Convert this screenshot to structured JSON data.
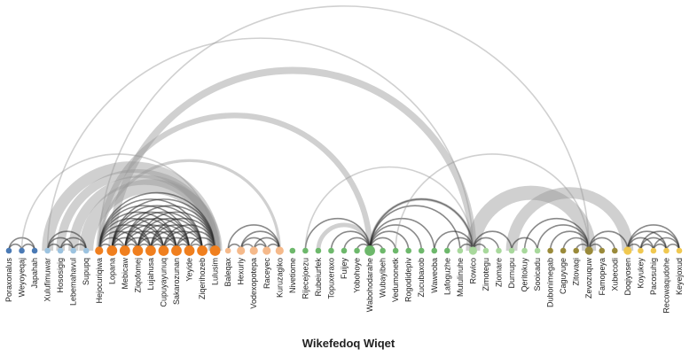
{
  "chart_data": {
    "type": "arc-diagram",
    "title": "Wikefedoq Wiqet",
    "nodes": [
      {
        "name": "Poraxonalus",
        "group": 0,
        "size": 1
      },
      {
        "name": "Weyoyeqaj",
        "group": 0,
        "size": 1
      },
      {
        "name": "Japahah",
        "group": 0,
        "size": 1
      },
      {
        "name": "Xulufimuwar",
        "group": 1,
        "size": 1
      },
      {
        "name": "Hososigig",
        "group": 1,
        "size": 1
      },
      {
        "name": "Lebemahavul",
        "group": 1,
        "size": 1
      },
      {
        "name": "Supupq",
        "group": 1,
        "size": 1
      },
      {
        "name": "Hejocuriqiwa",
        "group": 2,
        "size": 2
      },
      {
        "name": "Lopana",
        "group": 2,
        "size": 3
      },
      {
        "name": "Mebicaw",
        "group": 2,
        "size": 3
      },
      {
        "name": "Ziqofomej",
        "group": 2,
        "size": 3
      },
      {
        "name": "Lujahusa",
        "group": 2,
        "size": 3
      },
      {
        "name": "Cupuyayunuq",
        "group": 2,
        "size": 3
      },
      {
        "name": "Sakarozunan",
        "group": 2,
        "size": 3
      },
      {
        "name": "Yeyide",
        "group": 2,
        "size": 3
      },
      {
        "name": "Ziqerihozeb",
        "group": 2,
        "size": 3
      },
      {
        "name": "Lulusim",
        "group": 2,
        "size": 3
      },
      {
        "name": "Baleqax",
        "group": 3,
        "size": 1
      },
      {
        "name": "Hexuriy",
        "group": 3,
        "size": 2
      },
      {
        "name": "Vodexopotepa",
        "group": 3,
        "size": 2
      },
      {
        "name": "Raceyec",
        "group": 3,
        "size": 2
      },
      {
        "name": "Kuruzagiko",
        "group": 3,
        "size": 2
      },
      {
        "name": "Nivetiome",
        "group": 4,
        "size": 1
      },
      {
        "name": "Rijecejoezu",
        "group": 4,
        "size": 1
      },
      {
        "name": "Rubeiurfek",
        "group": 4,
        "size": 1
      },
      {
        "name": "Topuxeraxo",
        "group": 4,
        "size": 1
      },
      {
        "name": "Fuijey",
        "group": 4,
        "size": 1
      },
      {
        "name": "Yobohoye",
        "group": 4,
        "size": 1
      },
      {
        "name": "Wabohodarahe",
        "group": 4,
        "size": 3
      },
      {
        "name": "Wubayibeh",
        "group": 4,
        "size": 1
      },
      {
        "name": "Vedumonetk",
        "group": 4,
        "size": 1
      },
      {
        "name": "Rogodidepiv",
        "group": 4,
        "size": 1
      },
      {
        "name": "Zucubaxob",
        "group": 4,
        "size": 1
      },
      {
        "name": "Waweoba",
        "group": 4,
        "size": 1
      },
      {
        "name": "Lafoguzhe",
        "group": 4,
        "size": 1
      },
      {
        "name": "Mutulinuhe",
        "group": 5,
        "size": 1
      },
      {
        "name": "Rowico",
        "group": 5,
        "size": 2
      },
      {
        "name": "Zimotegu",
        "group": 5,
        "size": 1
      },
      {
        "name": "Ziomare",
        "group": 5,
        "size": 1
      },
      {
        "name": "Durnupu",
        "group": 5,
        "size": 1
      },
      {
        "name": "Qeritokuy",
        "group": 5,
        "size": 1
      },
      {
        "name": "Sooicadu",
        "group": 5,
        "size": 1
      },
      {
        "name": "Dubonimegab",
        "group": 6,
        "size": 1
      },
      {
        "name": "Caguyuge",
        "group": 6,
        "size": 1
      },
      {
        "name": "Zitovaqi",
        "group": 6,
        "size": 1
      },
      {
        "name": "Zevozuquw",
        "group": 6,
        "size": 2
      },
      {
        "name": "Famopeya",
        "group": 6,
        "size": 1
      },
      {
        "name": "Xubecodi",
        "group": 6,
        "size": 1
      },
      {
        "name": "Doqiyosen",
        "group": 7,
        "size": 2
      },
      {
        "name": "Koyukey",
        "group": 7,
        "size": 1
      },
      {
        "name": "Pacosuhig",
        "group": 7,
        "size": 1
      },
      {
        "name": "Recowaqudohe",
        "group": 7,
        "size": 1
      },
      {
        "name": "Keyejoxud",
        "group": 7,
        "size": 1
      }
    ],
    "links": [
      [
        0,
        1,
        1
      ],
      [
        1,
        2,
        1
      ],
      [
        0,
        2,
        1
      ],
      [
        3,
        4,
        1
      ],
      [
        4,
        5,
        1
      ],
      [
        5,
        6,
        1
      ],
      [
        3,
        5,
        1
      ],
      [
        4,
        6,
        1
      ],
      [
        3,
        6,
        1
      ],
      [
        7,
        8,
        1
      ],
      [
        7,
        9,
        1
      ],
      [
        7,
        10,
        1
      ],
      [
        7,
        11,
        1
      ],
      [
        7,
        12,
        1
      ],
      [
        7,
        13,
        1
      ],
      [
        7,
        14,
        1
      ],
      [
        7,
        15,
        1
      ],
      [
        7,
        16,
        1
      ],
      [
        8,
        9,
        1
      ],
      [
        8,
        10,
        1
      ],
      [
        8,
        11,
        1
      ],
      [
        8,
        12,
        1
      ],
      [
        8,
        13,
        1
      ],
      [
        8,
        14,
        1
      ],
      [
        8,
        15,
        1
      ],
      [
        8,
        16,
        1
      ],
      [
        9,
        10,
        1
      ],
      [
        9,
        11,
        1
      ],
      [
        9,
        12,
        1
      ],
      [
        9,
        13,
        1
      ],
      [
        9,
        14,
        1
      ],
      [
        9,
        15,
        1
      ],
      [
        9,
        16,
        1
      ],
      [
        10,
        11,
        1
      ],
      [
        10,
        12,
        1
      ],
      [
        10,
        13,
        1
      ],
      [
        10,
        14,
        1
      ],
      [
        10,
        15,
        1
      ],
      [
        10,
        16,
        1
      ],
      [
        11,
        12,
        1
      ],
      [
        11,
        13,
        1
      ],
      [
        11,
        14,
        1
      ],
      [
        11,
        15,
        1
      ],
      [
        11,
        16,
        1
      ],
      [
        12,
        13,
        1
      ],
      [
        12,
        14,
        1
      ],
      [
        12,
        15,
        1
      ],
      [
        12,
        16,
        1
      ],
      [
        13,
        14,
        1
      ],
      [
        13,
        15,
        1
      ],
      [
        13,
        16,
        1
      ],
      [
        14,
        15,
        1
      ],
      [
        14,
        16,
        1
      ],
      [
        15,
        16,
        1
      ],
      [
        17,
        18,
        1
      ],
      [
        17,
        21,
        1
      ],
      [
        18,
        19,
        1
      ],
      [
        18,
        20,
        1
      ],
      [
        18,
        21,
        1
      ],
      [
        19,
        20,
        1
      ],
      [
        19,
        21,
        1
      ],
      [
        20,
        21,
        1
      ],
      [
        6,
        16,
        10
      ],
      [
        5,
        16,
        7
      ],
      [
        4,
        16,
        6
      ],
      [
        3,
        16,
        8
      ],
      [
        7,
        21,
        2
      ],
      [
        1,
        16,
        1
      ],
      [
        23,
        28,
        1
      ],
      [
        24,
        28,
        3
      ],
      [
        25,
        28,
        1
      ],
      [
        26,
        28,
        1
      ],
      [
        27,
        28,
        1
      ],
      [
        28,
        29,
        1
      ],
      [
        28,
        30,
        1
      ],
      [
        28,
        31,
        1
      ],
      [
        28,
        32,
        1
      ],
      [
        28,
        33,
        1
      ],
      [
        28,
        35,
        1
      ],
      [
        23,
        36,
        1
      ],
      [
        28,
        36,
        2
      ],
      [
        28,
        36,
        1
      ],
      [
        35,
        36,
        1
      ],
      [
        34,
        36,
        1
      ],
      [
        33,
        36,
        1
      ],
      [
        36,
        37,
        1
      ],
      [
        36,
        38,
        1
      ],
      [
        36,
        39,
        1
      ],
      [
        8,
        36,
        5
      ],
      [
        7,
        28,
        4
      ],
      [
        3,
        36,
        1
      ],
      [
        39,
        41,
        1
      ],
      [
        40,
        45,
        1
      ],
      [
        41,
        45,
        1
      ],
      [
        42,
        45,
        1
      ],
      [
        43,
        45,
        1
      ],
      [
        44,
        45,
        1
      ],
      [
        45,
        46,
        1
      ],
      [
        45,
        47,
        1
      ],
      [
        45,
        48,
        1
      ],
      [
        36,
        45,
        10
      ],
      [
        30,
        45,
        1
      ],
      [
        39,
        48,
        8
      ],
      [
        7,
        45,
        1
      ],
      [
        48,
        49,
        1
      ],
      [
        48,
        50,
        1
      ],
      [
        48,
        51,
        1
      ],
      [
        48,
        52,
        1
      ],
      [
        49,
        50,
        1
      ],
      [
        50,
        51,
        1
      ],
      [
        51,
        52,
        1
      ],
      [
        49,
        52,
        1
      ],
      [
        49,
        51,
        1
      ],
      [
        50,
        52,
        1
      ]
    ],
    "group_colors": [
      "#4a7ab5",
      "#9cc3e0",
      "#f07f1e",
      "#f5b98a",
      "#6db86b",
      "#a8d89c",
      "#9a8a3a",
      "#f0c850"
    ]
  }
}
